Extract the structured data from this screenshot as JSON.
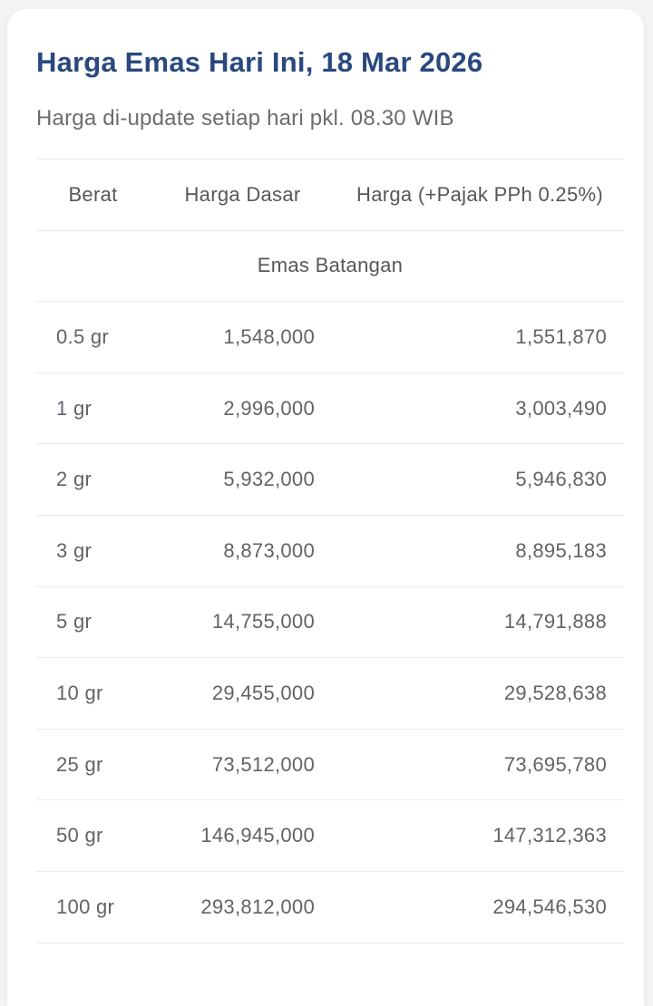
{
  "page": {
    "title": "Harga Emas Hari Ini, 18 Mar 2026",
    "subtitle": "Harga di-update setiap hari pkl. 08.30 WIB"
  },
  "table": {
    "columns": {
      "berat": "Berat",
      "harga_dasar": "Harga Dasar",
      "harga_pajak": "Harga (+Pajak PPh 0.25%)"
    },
    "section_label": "Emas Batangan",
    "rows": [
      {
        "berat": "0.5 gr",
        "harga_dasar": "1,548,000",
        "harga_pajak": "1,551,870"
      },
      {
        "berat": "1 gr",
        "harga_dasar": "2,996,000",
        "harga_pajak": "3,003,490"
      },
      {
        "berat": "2 gr",
        "harga_dasar": "5,932,000",
        "harga_pajak": "5,946,830"
      },
      {
        "berat": "3 gr",
        "harga_dasar": "8,873,000",
        "harga_pajak": "8,895,183"
      },
      {
        "berat": "5 gr",
        "harga_dasar": "14,755,000",
        "harga_pajak": "14,791,888"
      },
      {
        "berat": "10 gr",
        "harga_dasar": "29,455,000",
        "harga_pajak": "29,528,638"
      },
      {
        "berat": "25 gr",
        "harga_dasar": "73,512,000",
        "harga_pajak": "73,695,780"
      },
      {
        "berat": "50 gr",
        "harga_dasar": "146,945,000",
        "harga_pajak": "147,312,363"
      },
      {
        "berat": "100 gr",
        "harga_dasar": "293,812,000",
        "harga_pajak": "294,546,530"
      }
    ]
  },
  "colors": {
    "title": "#29497e",
    "subtitle_text": "#696d71",
    "header_text": "#55575a",
    "data_text": "#606367",
    "divider": "#ececec",
    "card_bg": "#ffffff",
    "page_bg": "#f4f4f6"
  }
}
